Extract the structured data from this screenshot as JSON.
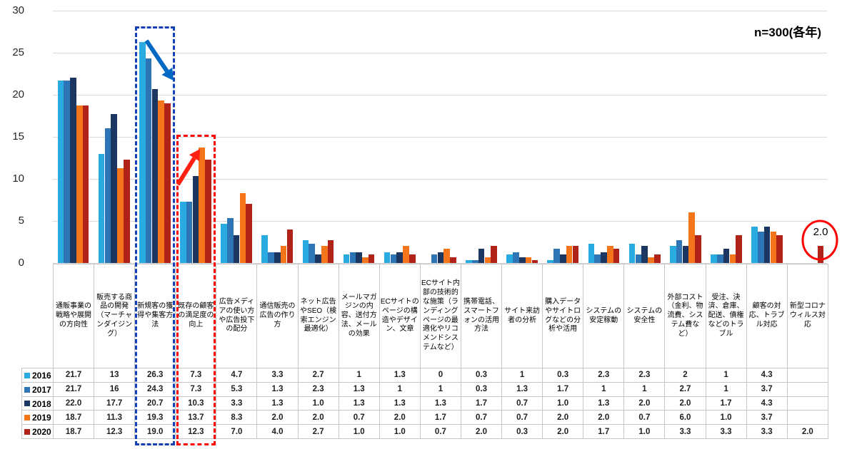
{
  "note": "n=300(各年)",
  "chart_data": {
    "type": "bar",
    "title": "",
    "xlabel": "",
    "ylabel": "",
    "ylim": [
      0,
      30
    ],
    "y_ticks": [
      0,
      5,
      10,
      15,
      20,
      25,
      30
    ],
    "grid": true,
    "legend_position": "table-left-column",
    "categories": [
      "通販事業の戦略や展開の方向性",
      "販売する商品の開発（マーチャンダイジング）",
      "新規客の獲得や集客方法",
      "既存の顧客の満足度の向上",
      "広告メディアの使い方や広告投下の配分",
      "通信販売の広告の作り方",
      "ネット広告やSEO（検索エンジン最適化）",
      "メールマガジンの内容、送付方法、メールの効果",
      "ECサイトのページの構造やデザイン、文章",
      "ECサイト内部の技術的な施策（ランディングページの最適化やリコメンドシステムなど）",
      "携帯電話、スマートフォンの活用方法",
      "サイト来訪者の分析",
      "購入データやサイトログなどの分析や活用",
      "システムの安定稼動",
      "システムの安全性",
      "外部コスト（金利、物流費、システム費など）",
      "受注、決済、倉庫、配送、債権などのトラブル",
      "顧客の対応、トラブル対応",
      "新型コロナウィルス対応"
    ],
    "series": [
      {
        "name": "2016",
        "color": "#29ABE2",
        "values": [
          21.7,
          13,
          26.3,
          7.3,
          4.7,
          3.3,
          2.7,
          1,
          1.3,
          0,
          0.3,
          1,
          0.3,
          2.3,
          2.3,
          2,
          1,
          4.3,
          null
        ]
      },
      {
        "name": "2017",
        "color": "#2E75B6",
        "values": [
          21.7,
          16,
          24.3,
          7.3,
          5.3,
          1.3,
          2.3,
          1.3,
          1,
          1,
          0.3,
          1.3,
          1.7,
          1,
          1,
          2.7,
          1,
          3.7,
          null
        ]
      },
      {
        "name": "2018",
        "color": "#1B3660",
        "values": [
          22.0,
          17.7,
          20.7,
          10.3,
          3.3,
          1.3,
          1.0,
          1.3,
          1.3,
          1.3,
          1.7,
          0.7,
          1.0,
          1.3,
          2.0,
          2.0,
          1.7,
          4.3,
          null
        ]
      },
      {
        "name": "2019",
        "color": "#F5761A",
        "values": [
          18.7,
          11.3,
          19.3,
          13.7,
          8.3,
          2.0,
          2.0,
          0.7,
          2.0,
          1.7,
          0.7,
          0.7,
          2.0,
          2.0,
          0.7,
          6.0,
          1.0,
          3.7,
          null
        ]
      },
      {
        "name": "2020",
        "color": "#B02318",
        "values": [
          18.7,
          12.3,
          19.0,
          12.3,
          7.0,
          4.0,
          2.7,
          1.0,
          1.0,
          0.7,
          2.0,
          0.3,
          2.0,
          1.7,
          1.0,
          3.3,
          3.3,
          3.3,
          2.0
        ]
      }
    ]
  },
  "table": {
    "rows": [
      {
        "label": "2016",
        "cells": [
          "21.7",
          "13",
          "26.3",
          "7.3",
          "4.7",
          "3.3",
          "2.7",
          "1",
          "1.3",
          "0",
          "0.3",
          "1",
          "0.3",
          "2.3",
          "2.3",
          "2",
          "1",
          "4.3",
          ""
        ]
      },
      {
        "label": "2017",
        "cells": [
          "21.7",
          "16",
          "24.3",
          "7.3",
          "5.3",
          "1.3",
          "2.3",
          "1.3",
          "1",
          "1",
          "0.3",
          "1.3",
          "1.7",
          "1",
          "1",
          "2.7",
          "1",
          "3.7",
          ""
        ]
      },
      {
        "label": "2018",
        "cells": [
          "22.0",
          "17.7",
          "20.7",
          "10.3",
          "3.3",
          "1.3",
          "1.0",
          "1.3",
          "1.3",
          "1.3",
          "1.7",
          "0.7",
          "1.0",
          "1.3",
          "2.0",
          "2.0",
          "1.7",
          "4.3",
          ""
        ]
      },
      {
        "label": "2019",
        "cells": [
          "18.7",
          "11.3",
          "19.3",
          "13.7",
          "8.3",
          "2.0",
          "2.0",
          "0.7",
          "2.0",
          "1.7",
          "0.7",
          "0.7",
          "2.0",
          "2.0",
          "0.7",
          "6.0",
          "1.0",
          "3.7",
          ""
        ]
      },
      {
        "label": "2020",
        "cells": [
          "18.7",
          "12.3",
          "19.0",
          "12.3",
          "7.0",
          "4.0",
          "2.7",
          "1.0",
          "1.0",
          "0.7",
          "2.0",
          "0.3",
          "2.0",
          "1.7",
          "1.0",
          "3.3",
          "3.3",
          "3.3",
          "2.0"
        ]
      }
    ]
  },
  "annotations": {
    "covid_circle_value": "2.0",
    "blue_box_category": "新規客の獲得や集客方法",
    "red_box_category": "既存の顧客の満足度の向上",
    "blue_arrow_direction": "down-right",
    "red_arrow_direction": "up-right",
    "colors": {
      "blue_box": "#1640B8",
      "red_box": "#FF0000",
      "blue_arrow": "#0068C2",
      "red_arrow": "#FF2012",
      "circle": "#FF0000",
      "gridline": "#D9D9D9"
    }
  }
}
